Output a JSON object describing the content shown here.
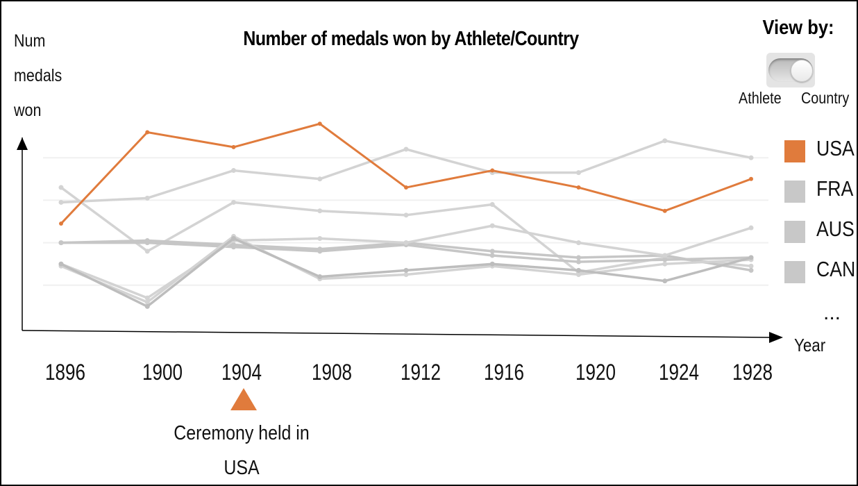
{
  "chart_data": {
    "type": "line",
    "title": "Number of medals won by Athlete/Country",
    "ylabel_lines": [
      "Num",
      "medals",
      "won"
    ],
    "xlabel": "Year",
    "x": [
      "1896",
      "1900",
      "1904",
      "1908",
      "1912",
      "1916",
      "1920",
      "1924",
      "1928"
    ],
    "ylim": [
      0,
      10
    ],
    "grid": true,
    "highlighted_series": "USA",
    "series": [
      {
        "name": "USA",
        "color": "#e07b3c",
        "values": [
          4.9,
          9.2,
          8.5,
          9.6,
          6.6,
          7.4,
          6.6,
          5.5,
          7.0
        ]
      },
      {
        "name": "FRA",
        "color": "#d3d3d3",
        "values": [
          5.9,
          6.1,
          7.4,
          7.0,
          8.4,
          7.3,
          7.3,
          8.8,
          8.0
        ]
      },
      {
        "name": "AUS",
        "color": "#d3d3d3",
        "values": [
          6.6,
          3.6,
          5.9,
          5.5,
          5.3,
          5.8,
          2.6,
          3.3,
          2.9
        ]
      },
      {
        "name": "CAN",
        "color": "#c6c6c6",
        "values": [
          4.0,
          4.1,
          3.9,
          3.7,
          4.0,
          3.6,
          3.3,
          3.4,
          2.7
        ]
      },
      {
        "color": "#c6c6c6",
        "values": [
          4.0,
          4.0,
          3.8,
          3.6,
          3.9,
          3.4,
          3.1,
          3.2,
          3.3
        ]
      },
      {
        "color": "#d3d3d3",
        "values": [
          3.0,
          1.4,
          4.1,
          4.2,
          4.0,
          4.8,
          4.0,
          3.4,
          4.7
        ]
      },
      {
        "color": "#d3d3d3",
        "values": [
          2.9,
          1.2,
          4.3,
          2.3,
          2.5,
          2.9,
          2.5,
          3.0,
          3.2
        ]
      },
      {
        "color": "#bdbdbd",
        "values": [
          3.0,
          1.0,
          4.2,
          2.4,
          2.7,
          3.0,
          2.7,
          2.2,
          3.3
        ]
      }
    ],
    "annotation": {
      "x": "1904",
      "lines": [
        "Ceremony held in",
        "USA"
      ],
      "color": "#e07b3c"
    }
  },
  "view_by": {
    "label": "View by:",
    "options": [
      "Athlete",
      "Country"
    ],
    "selected": "Country"
  },
  "legend": {
    "items": [
      {
        "label": "USA",
        "color": "#e07b3c"
      },
      {
        "label": "FRA",
        "color": "#c8c8c8"
      },
      {
        "label": "AUS",
        "color": "#c8c8c8"
      },
      {
        "label": "CAN",
        "color": "#c8c8c8"
      }
    ],
    "more": "..."
  }
}
